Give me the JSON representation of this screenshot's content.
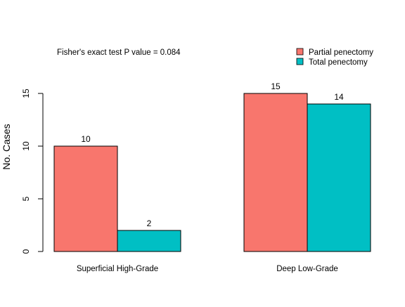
{
  "annotation": "Fisher's exact test P value =  0.084",
  "chart_data": {
    "type": "bar",
    "categories": [
      "Superficial High-Grade",
      "Deep Low-Grade"
    ],
    "series": [
      {
        "name": "Partial penectomy",
        "values": [
          10,
          15
        ],
        "labels": [
          "10",
          "15"
        ],
        "color": "#F8766D"
      },
      {
        "name": "Total penectomy",
        "values": [
          2,
          14
        ],
        "labels": [
          "2",
          "14"
        ],
        "color": "#00BFC4"
      }
    ],
    "ylabel": "No. Cases",
    "ylim": [
      0,
      15
    ],
    "yticks": [
      "0",
      "5",
      "10",
      "15"
    ],
    "legend_position": "top-right",
    "grid": false
  }
}
